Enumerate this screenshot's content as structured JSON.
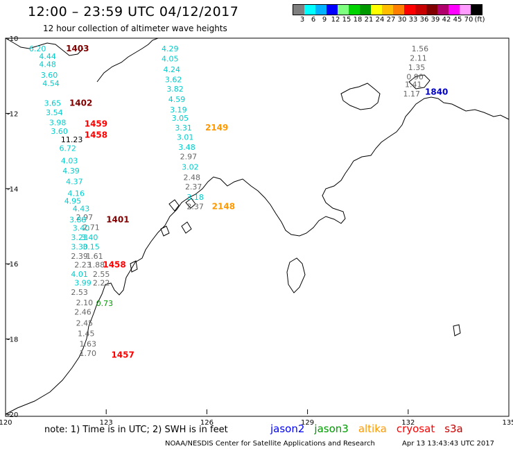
{
  "header": {
    "title": "12:00 – 23:59 UTC 04/12/2017",
    "subtitle": "12 hour collection of altimeter wave heights"
  },
  "legend": {
    "colors": [
      "#7f7f7f",
      "#00ffff",
      "#00b2ff",
      "#0000ff",
      "#7fff7f",
      "#00d400",
      "#009a00",
      "#ffff00",
      "#ffbf00",
      "#ff7f00",
      "#ff0000",
      "#c80000",
      "#800000",
      "#b0006b",
      "#ff00ff",
      "#ff9bff",
      "#000000"
    ],
    "labels": [
      "3",
      "6",
      "9",
      "12",
      "15",
      "18",
      "21",
      "24",
      "27",
      "30",
      "33",
      "36",
      "39",
      "42",
      "45",
      "70",
      "(ft)"
    ]
  },
  "map": {
    "x_ticks": [
      "120",
      "123",
      "126",
      "129",
      "132",
      "135"
    ],
    "y_ticks": [
      "-10",
      "-12",
      "-14",
      "-16",
      "-18",
      "-20"
    ],
    "swh_labels": [
      {
        "t": "6.20",
        "c": "#00cccc",
        "lon": 120.7,
        "lat": -10.35
      },
      {
        "t": "4.44",
        "c": "#00cccc",
        "lon": 121.0,
        "lat": -10.55
      },
      {
        "t": "4.48",
        "c": "#00cccc",
        "lon": 121.0,
        "lat": -10.77
      },
      {
        "t": "3.60",
        "c": "#00cccc",
        "lon": 121.05,
        "lat": -11.05
      },
      {
        "t": "4.54",
        "c": "#00cccc",
        "lon": 121.1,
        "lat": -11.27
      },
      {
        "t": "3.65",
        "c": "#00cccc",
        "lon": 121.15,
        "lat": -11.8
      },
      {
        "t": "3.54",
        "c": "#00cccc",
        "lon": 121.2,
        "lat": -12.05
      },
      {
        "t": "3.98",
        "c": "#00cccc",
        "lon": 121.3,
        "lat": -12.32
      },
      {
        "t": "3.60",
        "c": "#00cccc",
        "lon": 121.35,
        "lat": -12.55
      },
      {
        "t": "11.23",
        "c": "#000000",
        "lon": 121.65,
        "lat": -12.77
      },
      {
        "t": "6.72",
        "c": "#00cccc",
        "lon": 121.6,
        "lat": -13.0
      },
      {
        "t": "4.03",
        "c": "#00cccc",
        "lon": 121.65,
        "lat": -13.33
      },
      {
        "t": "4.39",
        "c": "#00cccc",
        "lon": 121.7,
        "lat": -13.6
      },
      {
        "t": "4.37",
        "c": "#00cccc",
        "lon": 121.8,
        "lat": -13.88
      },
      {
        "t": "4.16",
        "c": "#00cccc",
        "lon": 121.85,
        "lat": -14.2
      },
      {
        "t": "4.95",
        "c": "#00cccc",
        "lon": 121.75,
        "lat": -14.4
      },
      {
        "t": "4.43",
        "c": "#00cccc",
        "lon": 122.0,
        "lat": -14.6
      },
      {
        "t": "2.97",
        "c": "#666666",
        "lon": 122.1,
        "lat": -14.83
      },
      {
        "t": "3.88",
        "c": "#00cccc",
        "lon": 121.9,
        "lat": -14.9
      },
      {
        "t": "2.71",
        "c": "#666666",
        "lon": 122.3,
        "lat": -15.1
      },
      {
        "t": "3.40",
        "c": "#00cccc",
        "lon": 122.0,
        "lat": -15.12
      },
      {
        "t": "3.40",
        "c": "#00cccc",
        "lon": 122.25,
        "lat": -15.37
      },
      {
        "t": "3.23",
        "c": "#00cccc",
        "lon": 121.95,
        "lat": -15.37
      },
      {
        "t": "3.15",
        "c": "#00cccc",
        "lon": 122.3,
        "lat": -15.62
      },
      {
        "t": "3.30",
        "c": "#00cccc",
        "lon": 121.95,
        "lat": -15.62
      },
      {
        "t": "2.39",
        "c": "#666666",
        "lon": 121.95,
        "lat": -15.87
      },
      {
        "t": "1.61",
        "c": "#666666",
        "lon": 122.4,
        "lat": -15.87
      },
      {
        "t": "2.23",
        "c": "#666666",
        "lon": 122.05,
        "lat": -16.1
      },
      {
        "t": "1.88",
        "c": "#666666",
        "lon": 122.45,
        "lat": -16.1
      },
      {
        "t": "4.01",
        "c": "#00cccc",
        "lon": 121.95,
        "lat": -16.35
      },
      {
        "t": "2.55",
        "c": "#666666",
        "lon": 122.6,
        "lat": -16.35
      },
      {
        "t": "3.99",
        "c": "#00cccc",
        "lon": 122.05,
        "lat": -16.58
      },
      {
        "t": "2.22",
        "c": "#666666",
        "lon": 122.6,
        "lat": -16.58
      },
      {
        "t": "2.53",
        "c": "#666666",
        "lon": 121.95,
        "lat": -16.83
      },
      {
        "t": "2.10",
        "c": "#666666",
        "lon": 122.1,
        "lat": -17.1
      },
      {
        "t": "0.73",
        "c": "#009a00",
        "lon": 122.7,
        "lat": -17.12
      },
      {
        "t": "2.46",
        "c": "#666666",
        "lon": 122.05,
        "lat": -17.35
      },
      {
        "t": "2.45",
        "c": "#666666",
        "lon": 122.1,
        "lat": -17.65
      },
      {
        "t": "1.45",
        "c": "#666666",
        "lon": 122.15,
        "lat": -17.92
      },
      {
        "t": "1.63",
        "c": "#666666",
        "lon": 122.2,
        "lat": -18.2
      },
      {
        "t": "1.70",
        "c": "#666666",
        "lon": 122.2,
        "lat": -18.45
      },
      {
        "t": "4.29",
        "c": "#00cccc",
        "lon": 124.65,
        "lat": -10.35
      },
      {
        "t": "4.05",
        "c": "#00cccc",
        "lon": 124.65,
        "lat": -10.62
      },
      {
        "t": "4.24",
        "c": "#00cccc",
        "lon": 124.7,
        "lat": -10.9
      },
      {
        "t": "3.62",
        "c": "#00cccc",
        "lon": 124.75,
        "lat": -11.17
      },
      {
        "t": "3.82",
        "c": "#00cccc",
        "lon": 124.8,
        "lat": -11.42
      },
      {
        "t": "4.59",
        "c": "#00cccc",
        "lon": 124.85,
        "lat": -11.7
      },
      {
        "t": "3.19",
        "c": "#00cccc",
        "lon": 124.9,
        "lat": -11.97
      },
      {
        "t": "3.05",
        "c": "#00cccc",
        "lon": 124.95,
        "lat": -12.2
      },
      {
        "t": "3.31",
        "c": "#00cccc",
        "lon": 125.05,
        "lat": -12.45
      },
      {
        "t": "3.01",
        "c": "#00cccc",
        "lon": 125.1,
        "lat": -12.7
      },
      {
        "t": "3.48",
        "c": "#00cccc",
        "lon": 125.15,
        "lat": -12.97
      },
      {
        "t": "2.97",
        "c": "#666666",
        "lon": 125.2,
        "lat": -13.22
      },
      {
        "t": "3.02",
        "c": "#00cccc",
        "lon": 125.25,
        "lat": -13.5
      },
      {
        "t": "2.48",
        "c": "#666666",
        "lon": 125.3,
        "lat": -13.77
      },
      {
        "t": "2.37",
        "c": "#666666",
        "lon": 125.35,
        "lat": -14.02
      },
      {
        "t": "3.18",
        "c": "#00cccc",
        "lon": 125.4,
        "lat": -14.3
      },
      {
        "t": "2.37",
        "c": "#666666",
        "lon": 125.4,
        "lat": -14.55
      },
      {
        "t": "1.56",
        "c": "#666666",
        "lon": 132.1,
        "lat": -10.35
      },
      {
        "t": "2.11",
        "c": "#666666",
        "lon": 132.05,
        "lat": -10.6
      },
      {
        "t": "1.35",
        "c": "#666666",
        "lon": 132.0,
        "lat": -10.85
      },
      {
        "t": "0.90",
        "c": "#666666",
        "lon": 131.95,
        "lat": -11.1
      },
      {
        "t": "1.41",
        "c": "#666666",
        "lon": 131.9,
        "lat": -11.3
      },
      {
        "t": "1.17",
        "c": "#666666",
        "lon": 131.85,
        "lat": -11.55
      }
    ],
    "time_labels": [
      {
        "t": "1403",
        "c": "#800000",
        "lon": 121.8,
        "lat": -10.35
      },
      {
        "t": "1402",
        "c": "#800000",
        "lon": 121.9,
        "lat": -11.8
      },
      {
        "t": "1459",
        "c": "#ff0000",
        "lon": 122.35,
        "lat": -12.35
      },
      {
        "t": "1458",
        "c": "#ff0000",
        "lon": 122.35,
        "lat": -12.65
      },
      {
        "t": "1401",
        "c": "#800000",
        "lon": 123.0,
        "lat": -14.9
      },
      {
        "t": "1458",
        "c": "#ff0000",
        "lon": 122.9,
        "lat": -16.1
      },
      {
        "t": "1457",
        "c": "#ff0000",
        "lon": 123.15,
        "lat": -18.5
      },
      {
        "t": "2149",
        "c": "#ff9900",
        "lon": 125.95,
        "lat": -12.45
      },
      {
        "t": "2148",
        "c": "#ff9900",
        "lon": 126.15,
        "lat": -14.55
      },
      {
        "t": "1840",
        "c": "#0000cc",
        "lon": 132.5,
        "lat": -11.5
      }
    ]
  },
  "note": "note:  1) Time is in UTC;  2) SWH is in feet",
  "satellites": [
    {
      "name": "jason2",
      "color": "#0000ff"
    },
    {
      "name": "jason3",
      "color": "#009a00"
    },
    {
      "name": "altika",
      "color": "#ff9900"
    },
    {
      "name": "cryosat",
      "color": "#ff0000"
    },
    {
      "name": "s3a",
      "color": "#c80000"
    }
  ],
  "footer": "NOAA/NESDIS Center for Satellite Applications and Research",
  "timestamp": "Apr 13 13:43:43 UTC 2017"
}
